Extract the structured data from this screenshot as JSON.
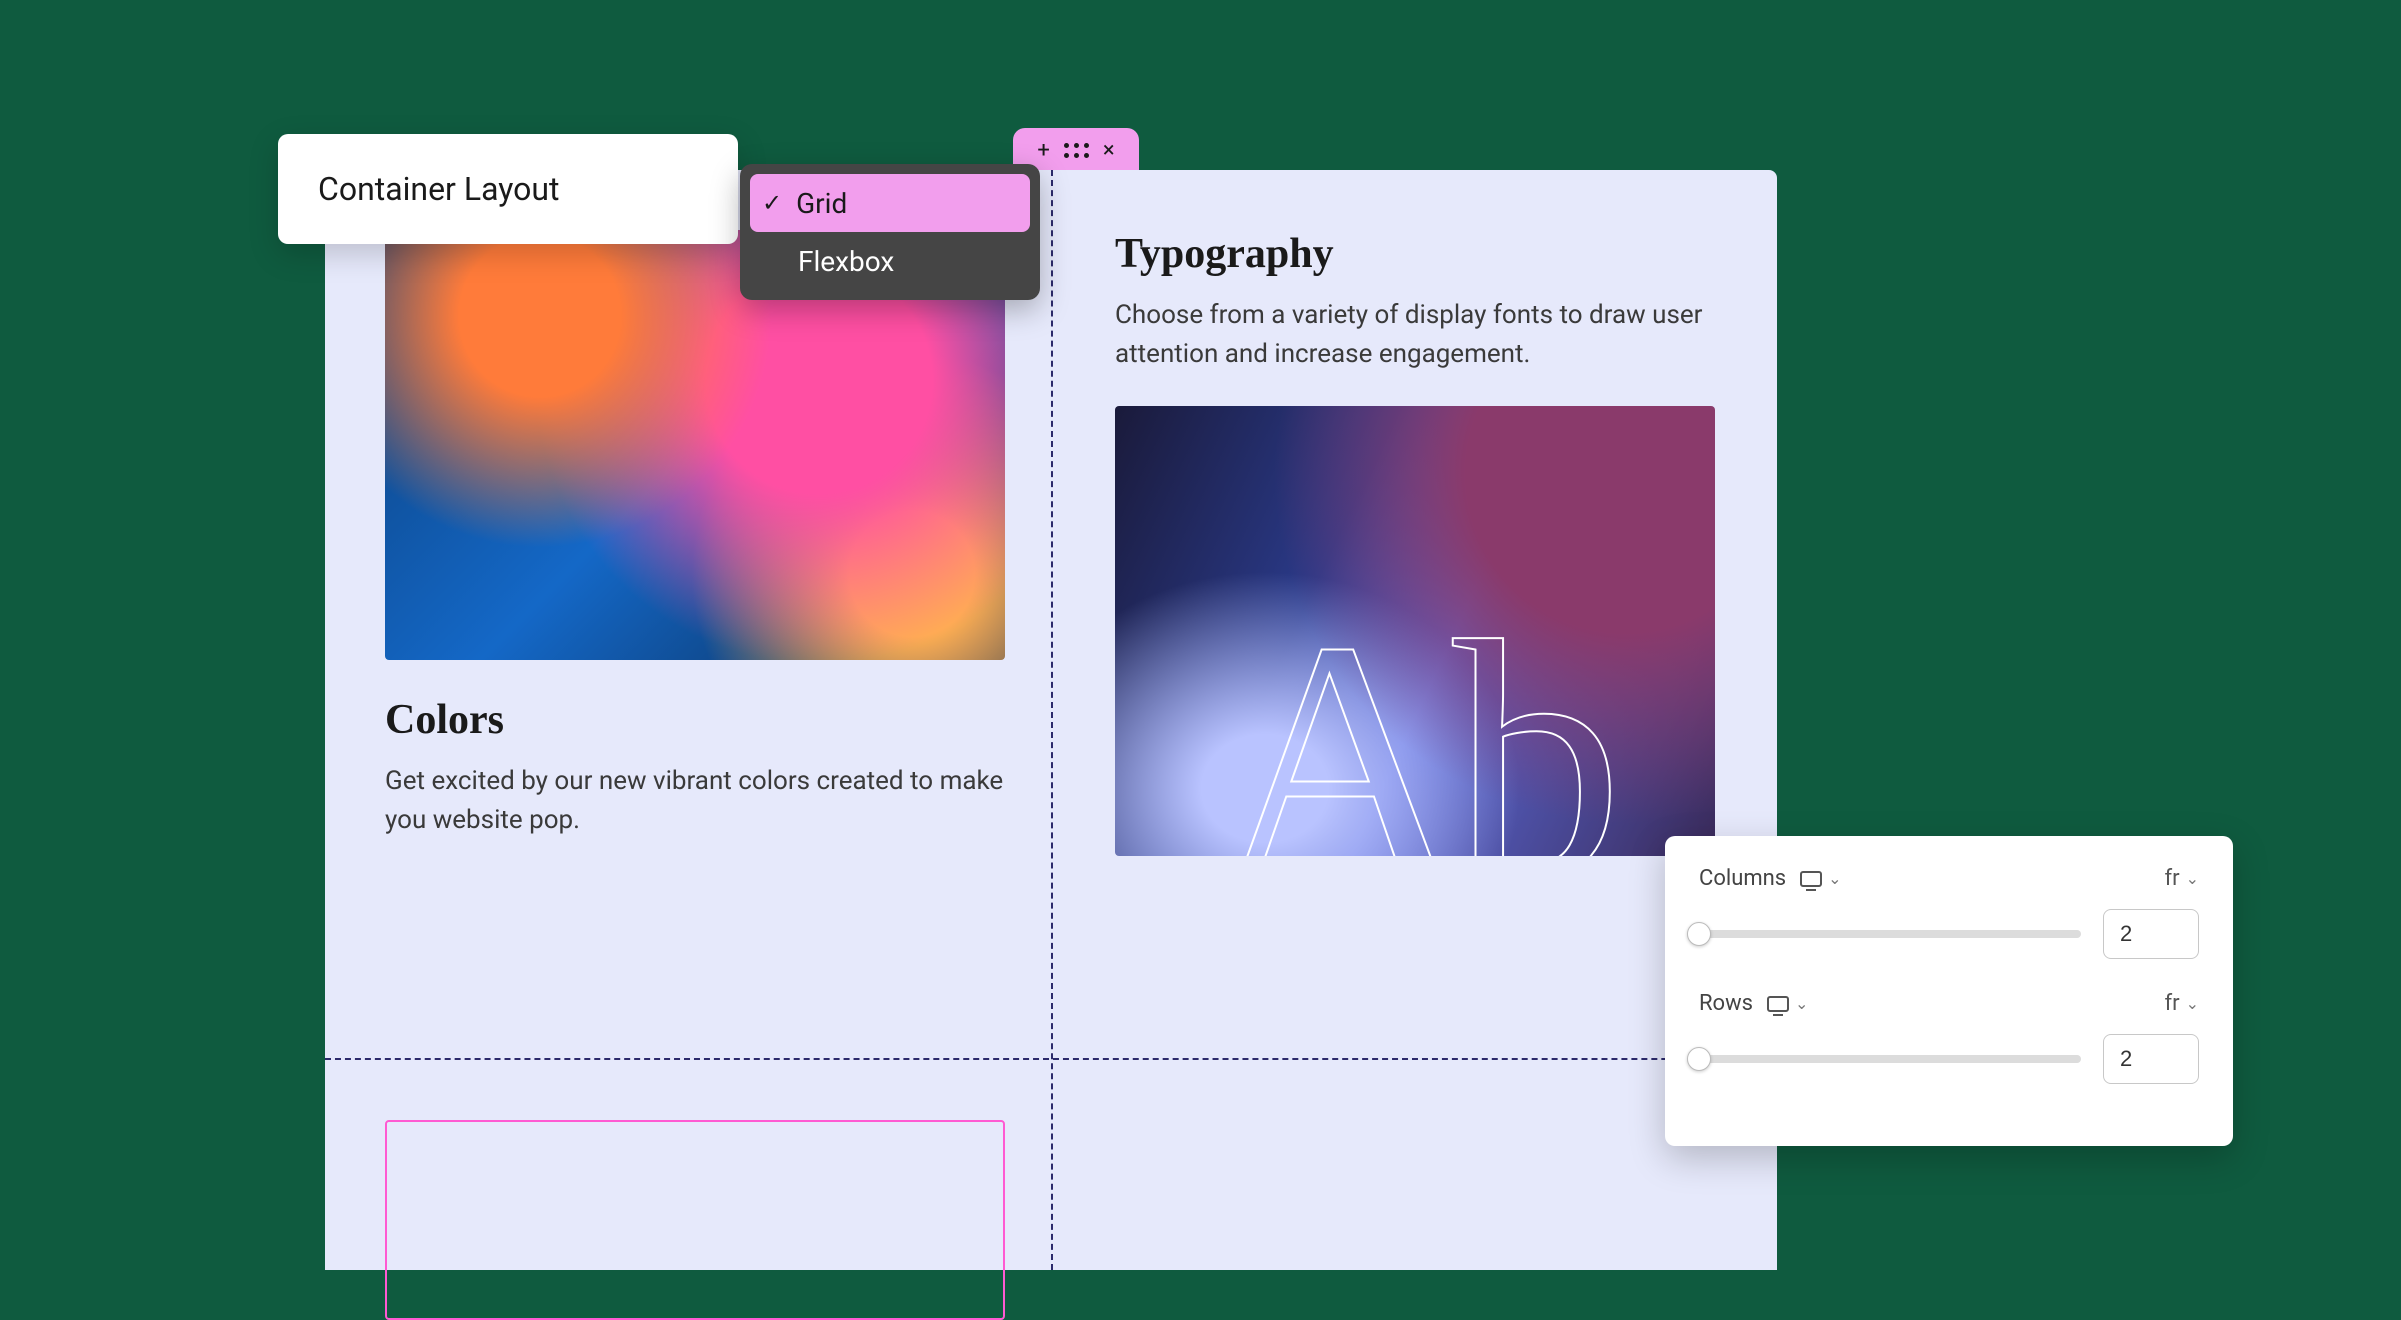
{
  "colors": {
    "page_bg": "#0f5b3f",
    "canvas_bg": "#e6e9fb",
    "grid_dash": "#2c2a6b",
    "accent_pink": "#f29eed",
    "selection_pink": "#ff5ad2",
    "dropdown_bg": "#454545",
    "text_primary": "#1a1a1a",
    "text_body": "#3a3a3a",
    "panel_bg": "#ffffff",
    "slider_track": "#dcdcdc",
    "input_border": "#c8c8c8"
  },
  "selection_toolbar": {
    "add_glyph": "+",
    "close_glyph": "×"
  },
  "layout_selector": {
    "label": "Container Layout",
    "options": [
      "Grid",
      "Flexbox"
    ],
    "selected": "Grid"
  },
  "cells": {
    "colors": {
      "title": "Colors",
      "body": "Get excited by our new vibrant colors created to make you website pop."
    },
    "typography": {
      "title": "Typography",
      "body": "Choose from a variety of display fonts to draw user attention and increase engagement.",
      "sample_glyphs": "Ab"
    }
  },
  "grid_panel": {
    "columns": {
      "label": "Columns",
      "unit": "fr",
      "value": "2",
      "slider_pos": 0
    },
    "rows": {
      "label": "Rows",
      "unit": "fr",
      "value": "2",
      "slider_pos": 0
    }
  }
}
